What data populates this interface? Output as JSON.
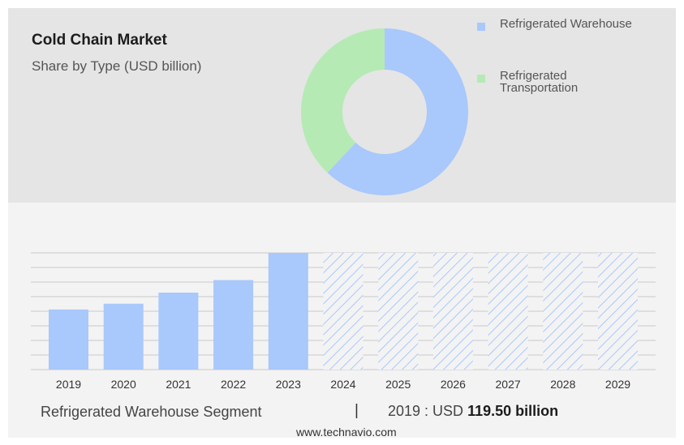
{
  "header": {
    "title": "Cold Chain Market",
    "subtitle": "Share by Type (USD billion)"
  },
  "legend": [
    {
      "label": "Refrigerated Warehouse",
      "color": "#a9c8fb"
    },
    {
      "label": "Refrigerated Transportation",
      "color": "#b5eab4"
    }
  ],
  "footer": {
    "segment": "Refrigerated Warehouse Segment",
    "separator": "|",
    "year_prefix": "2019 : USD ",
    "value": "119.50 billion",
    "source": "www.technavio.com"
  },
  "chart_data": [
    {
      "type": "pie",
      "title": "Cold Chain Market",
      "subtitle": "Share by Type (USD billion)",
      "donut": true,
      "slices": [
        {
          "label": "Refrigerated Warehouse",
          "value": 62,
          "color": "#a9c8fb"
        },
        {
          "label": "Refrigerated Transportation",
          "value": 38,
          "color": "#b5eab4"
        }
      ]
    },
    {
      "type": "bar",
      "categories": [
        "2019",
        "2020",
        "2021",
        "2022",
        "2023",
        "2024",
        "2025",
        "2026",
        "2027",
        "2028",
        "2029"
      ],
      "values": [
        119.5,
        131,
        153,
        178,
        232,
        null,
        null,
        null,
        null,
        null,
        null
      ],
      "forecast": [
        false,
        false,
        false,
        false,
        false,
        true,
        true,
        true,
        true,
        true,
        true
      ],
      "forecast_level": 232,
      "ylim": [
        0,
        232
      ],
      "grid": true,
      "bar_color": "#a9c8fb",
      "forecast_pattern_color": "#a9c8fb"
    }
  ]
}
